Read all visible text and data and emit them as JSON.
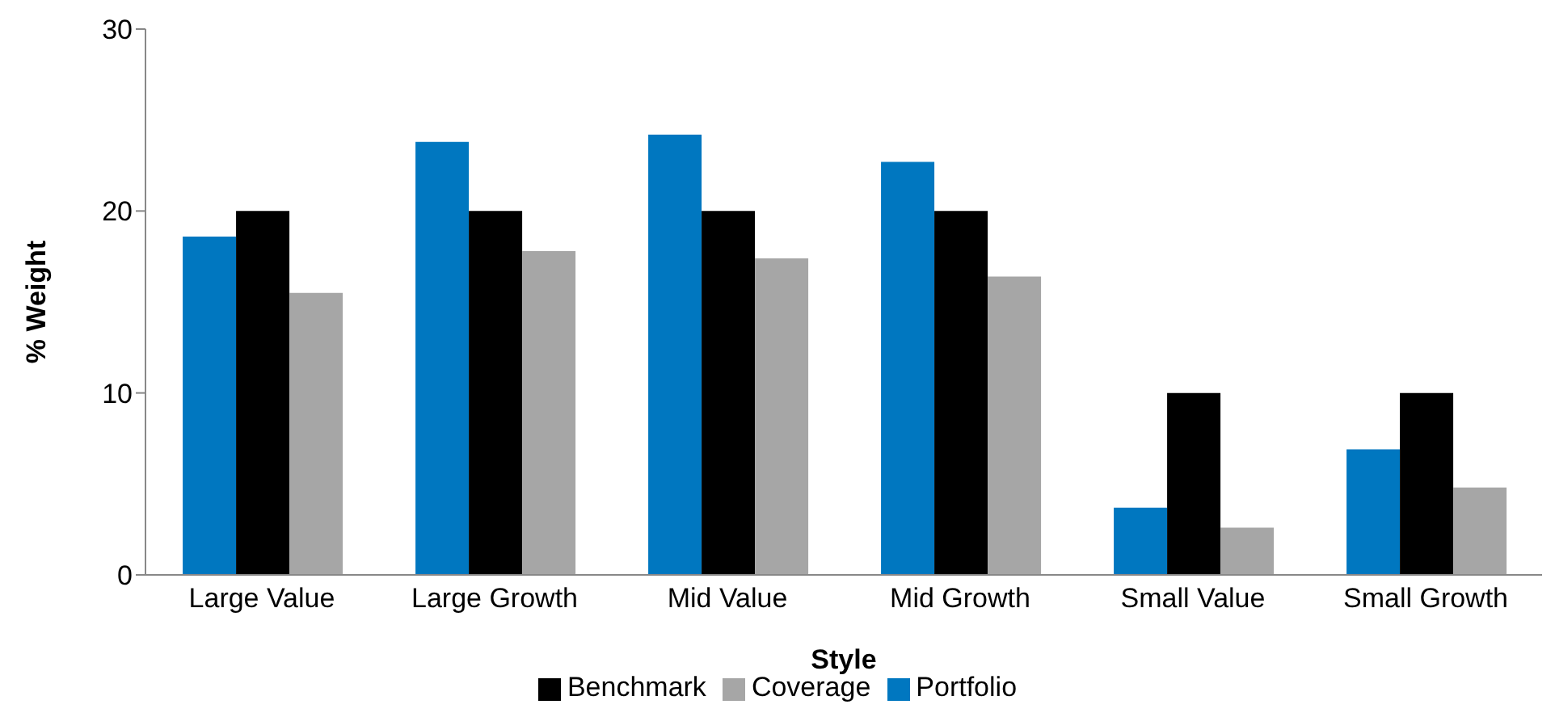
{
  "chart_data": {
    "type": "bar",
    "xlabel": "Style",
    "ylabel": "% Weight",
    "categories": [
      "Large Value",
      "Large Growth",
      "Mid Value",
      "Mid Growth",
      "Small Value",
      "Small Growth"
    ],
    "series": [
      {
        "name": "Portfolio",
        "color": "#0077c0",
        "values": [
          18.6,
          23.8,
          24.2,
          22.7,
          3.7,
          6.9
        ]
      },
      {
        "name": "Benchmark",
        "color": "#000000",
        "values": [
          20,
          20,
          20,
          20,
          10,
          10
        ]
      },
      {
        "name": "Coverage",
        "color": "#a6a6a6",
        "values": [
          15.5,
          17.8,
          17.4,
          16.4,
          2.6,
          4.8
        ]
      }
    ],
    "ylim": [
      0,
      30
    ],
    "yticks": [
      0,
      10,
      20,
      30
    ],
    "grid": false,
    "legend": "bottom"
  }
}
